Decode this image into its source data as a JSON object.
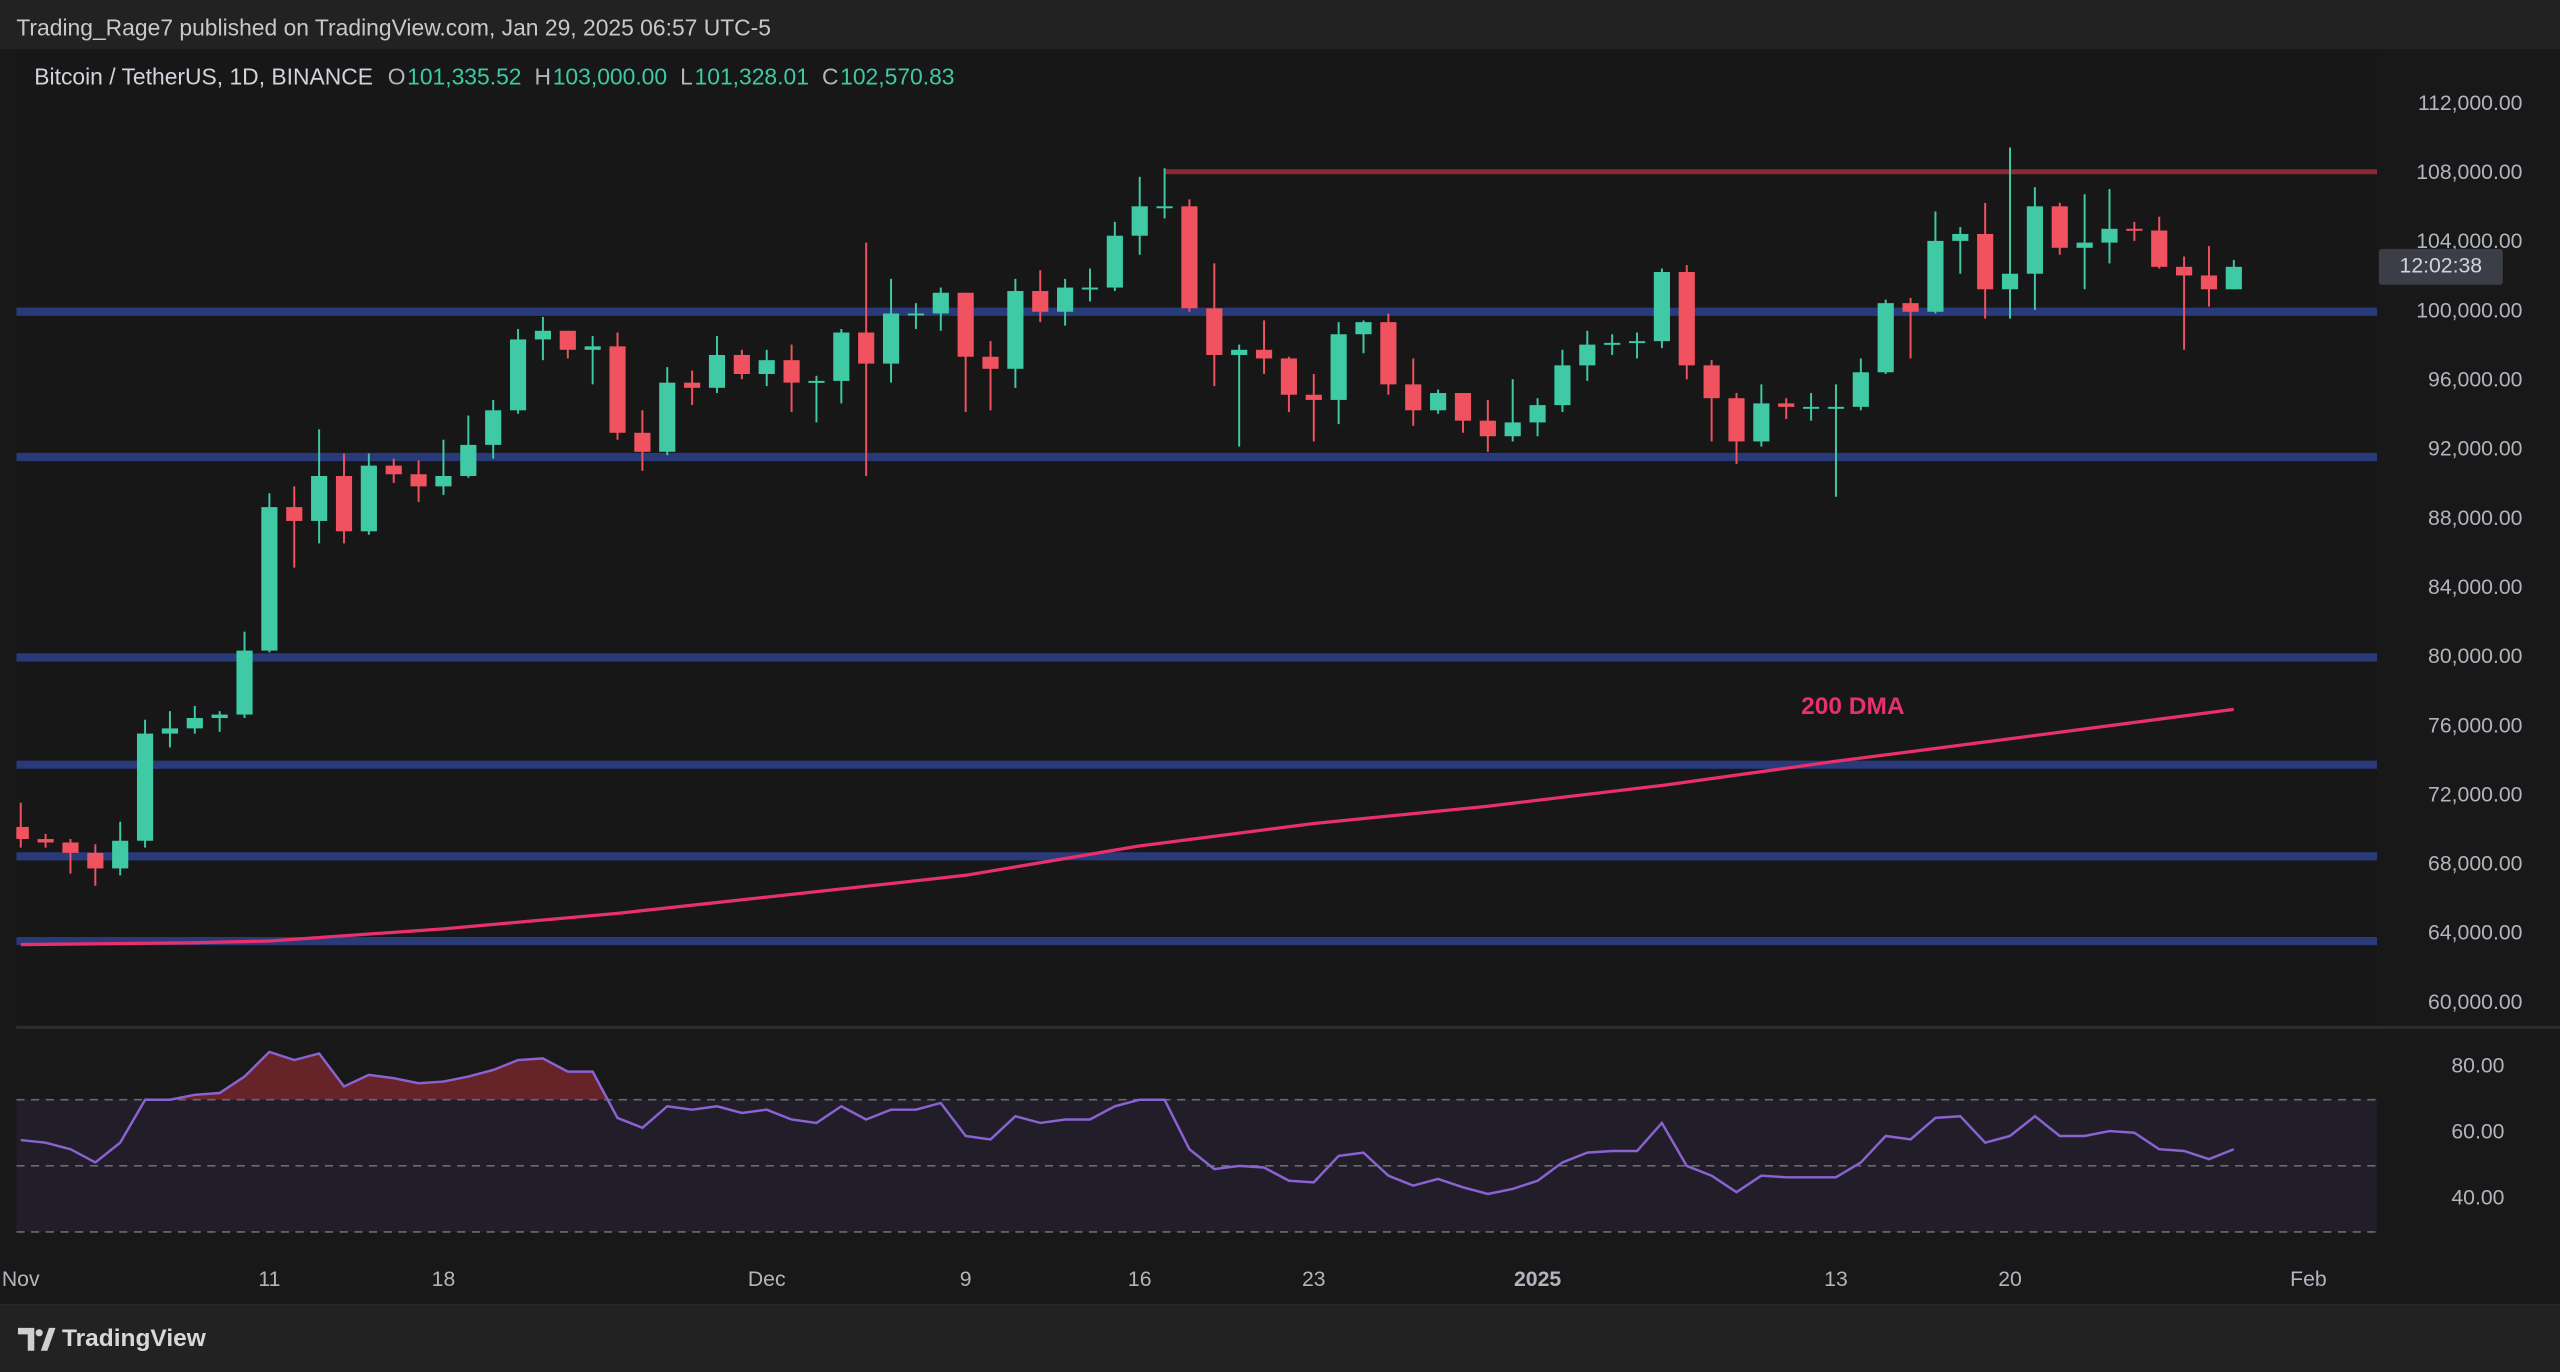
{
  "header": {
    "title": "Trading_Rage7 published on TradingView.com, Jan 29, 2025 06:57 UTC-5"
  },
  "footer": {
    "brand": "TradingView"
  },
  "chart_data": [
    {
      "type": "candlestick",
      "title": "Bitcoin / TetherUS, 1D, BINANCE",
      "ohlc_legend": [
        {
          "label": "O",
          "value": "101,335.52"
        },
        {
          "label": "H",
          "value": "103,000.00"
        },
        {
          "label": "L",
          "value": "101,328.01"
        },
        {
          "label": "C",
          "value": "102,570.83"
        }
      ],
      "x": [
        "2024-11-01",
        "2024-11-02",
        "2024-11-03",
        "2024-11-04",
        "2024-11-05",
        "2024-11-06",
        "2024-11-07",
        "2024-11-08",
        "2024-11-09",
        "2024-11-10",
        "2024-11-11",
        "2024-11-12",
        "2024-11-13",
        "2024-11-14",
        "2024-11-15",
        "2024-11-16",
        "2024-11-17",
        "2024-11-18",
        "2024-11-19",
        "2024-11-20",
        "2024-11-21",
        "2024-11-22",
        "2024-11-23",
        "2024-11-24",
        "2024-11-25",
        "2024-11-26",
        "2024-11-27",
        "2024-11-28",
        "2024-11-29",
        "2024-11-30",
        "2024-12-01",
        "2024-12-02",
        "2024-12-03",
        "2024-12-04",
        "2024-12-05",
        "2024-12-06",
        "2024-12-07",
        "2024-12-08",
        "2024-12-09",
        "2024-12-10",
        "2024-12-11",
        "2024-12-12",
        "2024-12-13",
        "2024-12-14",
        "2024-12-15",
        "2024-12-16",
        "2024-12-17",
        "2024-12-18",
        "2024-12-19",
        "2024-12-20",
        "2024-12-21",
        "2024-12-22",
        "2024-12-23",
        "2024-12-24",
        "2024-12-25",
        "2024-12-26",
        "2024-12-27",
        "2024-12-28",
        "2024-12-29",
        "2024-12-30",
        "2024-12-31",
        "2025-01-01",
        "2025-01-02",
        "2025-01-03",
        "2025-01-04",
        "2025-01-05",
        "2025-01-06",
        "2025-01-07",
        "2025-01-08",
        "2025-01-09",
        "2025-01-10",
        "2025-01-11",
        "2025-01-12",
        "2025-01-13",
        "2025-01-14",
        "2025-01-15",
        "2025-01-16",
        "2025-01-17",
        "2025-01-18",
        "2025-01-19",
        "2025-01-20",
        "2025-01-21",
        "2025-01-22",
        "2025-01-23",
        "2025-01-24",
        "2025-01-25",
        "2025-01-26",
        "2025-01-27",
        "2025-01-28",
        "2025-01-29"
      ],
      "open": [
        70200,
        69500,
        69300,
        68700,
        67800,
        69400,
        75600,
        75900,
        76500,
        76700,
        80400,
        88700,
        87900,
        90500,
        87300,
        91100,
        90600,
        89900,
        90500,
        92300,
        94300,
        98400,
        98900,
        97800,
        98000,
        93000,
        91900,
        95900,
        95600,
        97500,
        96400,
        97200,
        95900,
        96000,
        98800,
        97000,
        99900,
        99900,
        101100,
        97400,
        96700,
        101200,
        100000,
        101400,
        101400,
        104400,
        106100,
        106100,
        100200,
        97500,
        97800,
        97300,
        95200,
        94900,
        98700,
        99400,
        95800,
        94300,
        95300,
        93700,
        92800,
        93600,
        94600,
        96900,
        98100,
        98200,
        98300,
        102300,
        96900,
        95000,
        92500,
        94700,
        94500,
        94500,
        94500,
        96500,
        100500,
        100000,
        104100,
        104500,
        101300,
        102200,
        106100,
        103700,
        104000,
        104800,
        104700,
        102600,
        102100,
        101300
      ],
      "high": [
        71600,
        69800,
        69500,
        69200,
        70500,
        76400,
        76900,
        77200,
        76900,
        81500,
        89500,
        89900,
        93200,
        91800,
        91800,
        91500,
        91400,
        92600,
        94000,
        94900,
        99000,
        99700,
        98900,
        98600,
        98800,
        94300,
        96800,
        96600,
        98600,
        97800,
        97800,
        98100,
        96300,
        99000,
        104000,
        101900,
        100500,
        101400,
        101100,
        98300,
        101900,
        102400,
        101900,
        102500,
        105200,
        107800,
        108300,
        106500,
        102800,
        98100,
        99500,
        97400,
        96400,
        99400,
        99500,
        99900,
        97300,
        95500,
        95300,
        94900,
        96100,
        95000,
        97800,
        98900,
        98700,
        98800,
        102500,
        102700,
        97200,
        95300,
        95800,
        95000,
        95300,
        95800,
        97300,
        100700,
        100800,
        105800,
        104900,
        106300,
        109500,
        107200,
        106300,
        106800,
        107100,
        105200,
        105500,
        103200,
        103800,
        103000
      ],
      "low": [
        69000,
        69000,
        67500,
        66800,
        67400,
        69000,
        74800,
        75600,
        75700,
        76500,
        80300,
        85200,
        86600,
        86600,
        87100,
        90100,
        89000,
        89400,
        90400,
        91500,
        94100,
        97200,
        97300,
        95800,
        92600,
        90800,
        91700,
        94600,
        95300,
        96100,
        95700,
        94200,
        93600,
        94700,
        90500,
        95900,
        99000,
        98900,
        94200,
        94300,
        95600,
        99400,
        99200,
        100600,
        101200,
        103300,
        105400,
        100000,
        95700,
        92200,
        96400,
        94200,
        92500,
        93500,
        97600,
        95200,
        93400,
        94100,
        93000,
        91900,
        92500,
        92800,
        94200,
        96000,
        97500,
        97300,
        97900,
        96100,
        92500,
        91200,
        92200,
        93800,
        93700,
        89300,
        94300,
        96400,
        97300,
        99900,
        102200,
        99600,
        99600,
        100100,
        103300,
        101300,
        102800,
        104100,
        102500,
        97800,
        100300,
        101300
      ],
      "close": [
        69500,
        69300,
        68700,
        67800,
        69400,
        75600,
        75900,
        76500,
        76700,
        80400,
        88700,
        87900,
        90500,
        87300,
        91100,
        90600,
        89900,
        90500,
        92300,
        94300,
        98400,
        98900,
        97800,
        98000,
        93000,
        91900,
        95900,
        95600,
        97500,
        96400,
        97200,
        95900,
        96000,
        98800,
        97000,
        99900,
        99900,
        101100,
        97400,
        96700,
        101200,
        100000,
        101400,
        101400,
        104400,
        106100,
        106100,
        100200,
        97500,
        97800,
        97300,
        95200,
        94900,
        98700,
        99400,
        95800,
        94300,
        95300,
        93700,
        92800,
        93600,
        94600,
        96900,
        98100,
        98200,
        98300,
        102300,
        96900,
        95000,
        92500,
        94700,
        94500,
        94500,
        94500,
        96500,
        100500,
        100000,
        104100,
        104500,
        101300,
        102200,
        106100,
        103700,
        104000,
        104800,
        104700,
        102600,
        102100,
        101300,
        102600
      ],
      "up_color": "#3fc9a4",
      "down_color": "#f0525f",
      "xlim": [
        "2024-11-01",
        "2025-02-04"
      ],
      "xticks": [
        {
          "value": "2024-11-01",
          "label": "Nov"
        },
        {
          "value": "2024-11-11",
          "label": "11"
        },
        {
          "value": "2024-11-18",
          "label": "18"
        },
        {
          "value": "2024-12-01",
          "label": "Dec"
        },
        {
          "value": "2024-12-09",
          "label": "9"
        },
        {
          "value": "2024-12-16",
          "label": "16"
        },
        {
          "value": "2024-12-23",
          "label": "23"
        },
        {
          "value": "2025-01-01",
          "label": "2025"
        },
        {
          "value": "2025-01-13",
          "label": "13"
        },
        {
          "value": "2025-01-20",
          "label": "20"
        },
        {
          "value": "2025-02-01",
          "label": "Feb"
        }
      ],
      "ylim": [
        58700,
        115200
      ],
      "yticks": [
        {
          "value": 60000,
          "label": "60,000.00"
        },
        {
          "value": 64000,
          "label": "64,000.00"
        },
        {
          "value": 68000,
          "label": "68,000.00"
        },
        {
          "value": 72000,
          "label": "72,000.00"
        },
        {
          "value": 76000,
          "label": "76,000.00"
        },
        {
          "value": 80000,
          "label": "80,000.00"
        },
        {
          "value": 84000,
          "label": "84,000.00"
        },
        {
          "value": 88000,
          "label": "88,000.00"
        },
        {
          "value": 92000,
          "label": "92,000.00"
        },
        {
          "value": 96000,
          "label": "96,000.00"
        },
        {
          "value": 100000,
          "label": "100,000.00"
        },
        {
          "value": 104000,
          "label": "104,000.00"
        },
        {
          "value": 108000,
          "label": "108,000.00"
        },
        {
          "value": 112000,
          "label": "112,000.00"
        }
      ],
      "grid": false,
      "levels": [
        100000,
        91600,
        80000,
        73800,
        68500,
        63600
      ],
      "level_color": "#283a7a",
      "resistance": {
        "value": 108100,
        "start": "2024-12-17",
        "color": "#8a2a33"
      },
      "moving_average": {
        "name": "200 DMA",
        "color": "#e8306e",
        "x": [
          "2024-11-01",
          "2024-11-08",
          "2024-11-11",
          "2024-11-18",
          "2024-11-25",
          "2024-12-02",
          "2024-12-09",
          "2024-12-16",
          "2024-12-23",
          "2024-12-30",
          "2025-01-06",
          "2025-01-13",
          "2025-01-20",
          "2025-01-29"
        ],
        "values": [
          63400,
          63500,
          63600,
          64300,
          65200,
          66300,
          67400,
          69100,
          70400,
          71400,
          72600,
          74000,
          75300,
          77000
        ]
      },
      "countdown": "12:02:38"
    },
    {
      "type": "line",
      "x": [
        "2024-11-01",
        "2024-11-02",
        "2024-11-03",
        "2024-11-04",
        "2024-11-05",
        "2024-11-06",
        "2024-11-07",
        "2024-11-08",
        "2024-11-09",
        "2024-11-10",
        "2024-11-11",
        "2024-11-12",
        "2024-11-13",
        "2024-11-14",
        "2024-11-15",
        "2024-11-16",
        "2024-11-17",
        "2024-11-18",
        "2024-11-19",
        "2024-11-20",
        "2024-11-21",
        "2024-11-22",
        "2024-11-23",
        "2024-11-24",
        "2024-11-25",
        "2024-11-26",
        "2024-11-27",
        "2024-11-28",
        "2024-11-29",
        "2024-11-30",
        "2024-12-01",
        "2024-12-02",
        "2024-12-03",
        "2024-12-04",
        "2024-12-05",
        "2024-12-06",
        "2024-12-07",
        "2024-12-08",
        "2024-12-09",
        "2024-12-10",
        "2024-12-11",
        "2024-12-12",
        "2024-12-13",
        "2024-12-14",
        "2024-12-15",
        "2024-12-16",
        "2024-12-17",
        "2024-12-18",
        "2024-12-19",
        "2024-12-20",
        "2024-12-21",
        "2024-12-22",
        "2024-12-23",
        "2024-12-24",
        "2024-12-25",
        "2024-12-26",
        "2024-12-27",
        "2024-12-28",
        "2024-12-29",
        "2024-12-30",
        "2024-12-31",
        "2025-01-01",
        "2025-01-02",
        "2025-01-03",
        "2025-01-04",
        "2025-01-05",
        "2025-01-06",
        "2025-01-07",
        "2025-01-08",
        "2025-01-09",
        "2025-01-10",
        "2025-01-11",
        "2025-01-12",
        "2025-01-13",
        "2025-01-14",
        "2025-01-15",
        "2025-01-16",
        "2025-01-17",
        "2025-01-18",
        "2025-01-19",
        "2025-01-20",
        "2025-01-21",
        "2025-01-22",
        "2025-01-23",
        "2025-01-24",
        "2025-01-25",
        "2025-01-26",
        "2025-01-27",
        "2025-01-28",
        "2025-01-29"
      ],
      "values": [
        57.8,
        57,
        55,
        51,
        57,
        70,
        70,
        71.5,
        72,
        77,
        84.5,
        82,
        84,
        74,
        77.5,
        76.5,
        75,
        75.5,
        77,
        79,
        82,
        82.5,
        78.5,
        78.5,
        64.5,
        61.5,
        68,
        67,
        68,
        66,
        67,
        64,
        63,
        68,
        64,
        67,
        67,
        69,
        59,
        58,
        65,
        63,
        64,
        64,
        68,
        70,
        70,
        55,
        49,
        50,
        49.5,
        45.5,
        45,
        53,
        54,
        47,
        44,
        46,
        43.5,
        41.5,
        43,
        45.5,
        51,
        54,
        54.5,
        54.5,
        63,
        50,
        47,
        42,
        47,
        46.5,
        46.5,
        46.5,
        51,
        59,
        58,
        64.5,
        65,
        57,
        59,
        65,
        59,
        59,
        60.5,
        60,
        55,
        54.5,
        52,
        55
      ],
      "color": "#8a63d2",
      "xlim": [
        "2024-11-01",
        "2025-02-04"
      ],
      "ylim": [
        22.2,
        91.4
      ],
      "yticks": [
        {
          "value": 40,
          "label": "40.00"
        },
        {
          "value": 60,
          "label": "60.00"
        },
        {
          "value": 80,
          "label": "80.00"
        }
      ],
      "levels": [
        70,
        50,
        30
      ]
    }
  ]
}
